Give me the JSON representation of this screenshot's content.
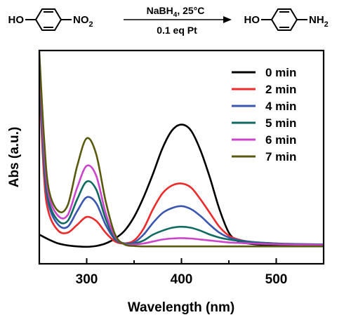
{
  "reaction": {
    "reactant_left": "HO",
    "reactant_right": "NO",
    "reactant_right_sub": "2",
    "reagent_top": "NaBH",
    "reagent_top_sub": "4",
    "reagent_top_rest": ", 25°C",
    "reagent_bottom": "0.1 eq Pt",
    "product_left": "HO",
    "product_right": "NH",
    "product_right_sub": "2"
  },
  "chart_data": {
    "type": "line",
    "title": "",
    "xlabel": "Wavelength (nm)",
    "ylabel": "Abs (a.u.)",
    "xlim": [
      250,
      550
    ],
    "ylim": [
      0,
      1
    ],
    "xticks": [
      300,
      400,
      500
    ],
    "xtick_labels": [
      "300",
      "400",
      "500"
    ],
    "yticks_shown": false,
    "grid": false,
    "legend_position": "top-right",
    "series": [
      {
        "name": "0 min",
        "color": "#000000",
        "x": [
          250,
          260,
          270,
          280,
          290,
          300,
          310,
          320,
          330,
          340,
          350,
          360,
          370,
          380,
          390,
          400,
          410,
          420,
          430,
          440,
          450,
          460,
          470,
          480,
          500,
          520,
          550
        ],
        "y": [
          0.07,
          0.045,
          0.025,
          0.015,
          0.01,
          0.008,
          0.012,
          0.025,
          0.05,
          0.09,
          0.16,
          0.26,
          0.38,
          0.51,
          0.6,
          0.63,
          0.6,
          0.5,
          0.36,
          0.2,
          0.08,
          0.035,
          0.025,
          0.02,
          0.015,
          0.012,
          0.01
        ]
      },
      {
        "name": "2 min",
        "color": "#ee2a2a",
        "x": [
          250,
          255,
          260,
          270,
          280,
          290,
          300,
          310,
          320,
          330,
          340,
          350,
          360,
          370,
          380,
          390,
          400,
          410,
          420,
          430,
          440,
          450,
          460,
          470,
          480,
          500,
          520,
          550
        ],
        "y": [
          0.86,
          0.36,
          0.18,
          0.09,
          0.08,
          0.12,
          0.16,
          0.14,
          0.08,
          0.035,
          0.025,
          0.04,
          0.1,
          0.2,
          0.28,
          0.32,
          0.33,
          0.31,
          0.25,
          0.18,
          0.11,
          0.065,
          0.045,
          0.035,
          0.03,
          0.025,
          0.022,
          0.02
        ]
      },
      {
        "name": "4 min",
        "color": "#3a56b0",
        "x": [
          250,
          255,
          260,
          270,
          280,
          290,
          300,
          310,
          320,
          330,
          340,
          350,
          360,
          370,
          380,
          390,
          400,
          410,
          420,
          430,
          440,
          450,
          460,
          470,
          480,
          500,
          520,
          550
        ],
        "y": [
          0.9,
          0.42,
          0.22,
          0.12,
          0.11,
          0.19,
          0.26,
          0.23,
          0.12,
          0.045,
          0.025,
          0.03,
          0.07,
          0.13,
          0.18,
          0.205,
          0.215,
          0.2,
          0.165,
          0.12,
          0.08,
          0.055,
          0.042,
          0.035,
          0.03,
          0.025,
          0.022,
          0.02
        ]
      },
      {
        "name": "5 min",
        "color": "#0f6a61",
        "x": [
          250,
          255,
          260,
          270,
          280,
          290,
          300,
          310,
          320,
          330,
          340,
          350,
          360,
          370,
          380,
          390,
          400,
          410,
          420,
          430,
          440,
          450,
          460,
          470,
          480,
          500,
          520,
          550
        ],
        "y": [
          0.92,
          0.45,
          0.24,
          0.14,
          0.14,
          0.25,
          0.34,
          0.3,
          0.15,
          0.05,
          0.025,
          0.025,
          0.04,
          0.07,
          0.09,
          0.105,
          0.11,
          0.105,
          0.09,
          0.07,
          0.055,
          0.045,
          0.038,
          0.032,
          0.028,
          0.024,
          0.021,
          0.019
        ]
      },
      {
        "name": "6 min",
        "color": "#cc44cc",
        "x": [
          250,
          255,
          260,
          270,
          280,
          290,
          300,
          310,
          320,
          330,
          340,
          350,
          360,
          370,
          380,
          390,
          400,
          410,
          420,
          430,
          440,
          450,
          460,
          470,
          480,
          500,
          520,
          550
        ],
        "y": [
          0.96,
          0.5,
          0.27,
          0.165,
          0.17,
          0.31,
          0.42,
          0.37,
          0.18,
          0.06,
          0.022,
          0.02,
          0.025,
          0.035,
          0.045,
          0.05,
          0.052,
          0.05,
          0.045,
          0.04,
          0.035,
          0.03,
          0.028,
          0.026,
          0.024,
          0.021,
          0.019,
          0.018
        ]
      },
      {
        "name": "7 min",
        "color": "#5a5a0f",
        "x": [
          250,
          255,
          260,
          270,
          280,
          290,
          300,
          310,
          320,
          330,
          340,
          350,
          360,
          370,
          380,
          390,
          400,
          410,
          420,
          430,
          440,
          450,
          460,
          470,
          480,
          500,
          520,
          550
        ],
        "y": [
          1.0,
          0.56,
          0.3,
          0.19,
          0.22,
          0.42,
          0.56,
          0.48,
          0.24,
          0.07,
          0.02,
          0.012,
          0.01,
          0.01,
          0.01,
          0.01,
          0.01,
          0.01,
          0.01,
          0.01,
          0.01,
          0.01,
          0.01,
          0.01,
          0.01,
          0.01,
          0.01,
          0.01
        ]
      }
    ]
  }
}
